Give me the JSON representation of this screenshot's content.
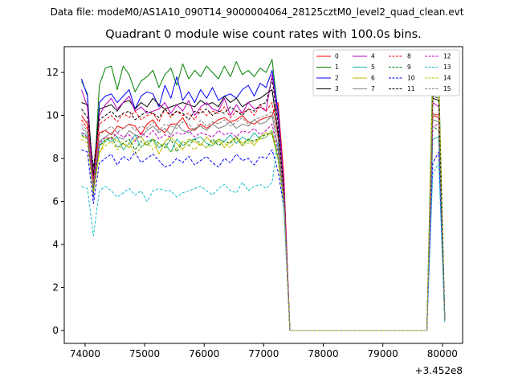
{
  "suptitle": "Data file: modeM0/AS1A10_090T14_9000004064_28125cztM0_level2_quad_clean.evt",
  "title": "Quadrant 0 module wise count rates with 100.0s bins.",
  "chart_data": {
    "type": "line",
    "title": "Quadrant 0 module wise count rates with 100.0s bins.",
    "xlabel": "",
    "ylabel": "",
    "x_offset_label": "+3.452e8",
    "xlim": [
      73650,
      80340
    ],
    "ylim": [
      -0.6,
      13.2
    ],
    "xticks": [
      74000,
      75000,
      76000,
      77000,
      78000,
      79000,
      80000
    ],
    "yticks": [
      0,
      2,
      4,
      6,
      8,
      10,
      12
    ],
    "legend_position": "upper right",
    "legend_columns": 4,
    "x": [
      73940,
      74040,
      74140,
      74240,
      74340,
      74440,
      74540,
      74640,
      74740,
      74840,
      74940,
      75040,
      75140,
      75240,
      75340,
      75440,
      75540,
      75640,
      75740,
      75840,
      75940,
      76040,
      76140,
      76240,
      76340,
      76440,
      76540,
      76640,
      76740,
      76840,
      76940,
      77040,
      77140,
      77240,
      77340,
      77440,
      77540,
      77640,
      77740,
      77840,
      77940,
      78040,
      78140,
      78240,
      78340,
      78440,
      78540,
      78640,
      78740,
      78840,
      78940,
      79040,
      79140,
      79240,
      79340,
      79440,
      79540,
      79640,
      79740,
      79840,
      79940,
      80040
    ],
    "series": [
      {
        "name": "0",
        "color": "#ff0000",
        "dash": "solid",
        "values": [
          10.0,
          9.6,
          7.0,
          9.2,
          9.3,
          9.1,
          9.5,
          9.4,
          9.6,
          9.5,
          9.1,
          9.6,
          9.8,
          9.4,
          9.2,
          9.6,
          9.6,
          9.9,
          9.4,
          9.3,
          9.6,
          9.4,
          9.6,
          9.8,
          9.9,
          9.7,
          9.8,
          10.0,
          9.7,
          9.6,
          9.8,
          9.9,
          10.0,
          10.6,
          7.1,
          0.0,
          0,
          0,
          0,
          0,
          0,
          0,
          0,
          0,
          0,
          0,
          0,
          0,
          0,
          0,
          0,
          0,
          0,
          0,
          0,
          0,
          0,
          0,
          0,
          10.0,
          9.9,
          0.5
        ]
      },
      {
        "name": "1",
        "color": "#008000",
        "dash": "solid",
        "values": [
          11.6,
          11.0,
          6.4,
          11.4,
          12.2,
          12.3,
          11.2,
          12.3,
          11.9,
          11.1,
          11.6,
          11.8,
          12.1,
          11.3,
          11.9,
          12.2,
          11.4,
          12.4,
          11.7,
          12.1,
          11.8,
          12.3,
          12.0,
          11.7,
          12.3,
          11.8,
          12.5,
          11.9,
          12.1,
          11.8,
          12.2,
          12.0,
          12.6,
          10.1,
          6.5,
          0.0,
          0,
          0,
          0,
          0,
          0,
          0,
          0,
          0,
          0,
          0,
          0,
          0,
          0,
          0,
          0,
          0,
          0,
          0,
          0,
          0,
          0,
          0,
          0,
          12.3,
          11.8,
          0.6
        ]
      },
      {
        "name": "2",
        "color": "#0000ff",
        "dash": "solid",
        "values": [
          11.7,
          10.9,
          6.2,
          10.6,
          10.9,
          11.0,
          10.6,
          10.9,
          11.2,
          10.3,
          10.9,
          11.1,
          11.0,
          10.4,
          11.4,
          10.8,
          11.8,
          10.7,
          11.1,
          10.6,
          11.2,
          10.8,
          11.3,
          10.7,
          10.9,
          11.0,
          10.8,
          11.2,
          11.4,
          10.9,
          11.5,
          11.3,
          12.1,
          10.2,
          6.7,
          0.0,
          0,
          0,
          0,
          0,
          0,
          0,
          0,
          0,
          0,
          0,
          0,
          0,
          0,
          0,
          0,
          0,
          0,
          0,
          0,
          0,
          0,
          0,
          0,
          11.0,
          11.0,
          0.6
        ]
      },
      {
        "name": "3",
        "color": "#000000",
        "dash": "solid",
        "values": [
          10.6,
          10.5,
          7.2,
          10.3,
          10.4,
          10.5,
          10.2,
          10.6,
          10.7,
          10.3,
          10.6,
          10.4,
          10.8,
          10.5,
          10.3,
          10.4,
          10.5,
          10.6,
          10.5,
          10.4,
          10.7,
          10.5,
          10.6,
          10.4,
          10.9,
          10.6,
          10.8,
          10.4,
          10.6,
          10.7,
          10.8,
          11.0,
          11.2,
          9.2,
          6.0,
          0.0,
          0,
          0,
          0,
          0,
          0,
          0,
          0,
          0,
          0,
          0,
          0,
          0,
          0,
          0,
          0,
          0,
          0,
          0,
          0,
          0,
          0,
          0,
          0,
          10.8,
          10.7,
          0.5
        ]
      },
      {
        "name": "4",
        "color": "#bf00bf",
        "dash": "solid",
        "values": [
          11.2,
          10.4,
          6.8,
          10.0,
          10.5,
          10.8,
          10.3,
          10.6,
          10.9,
          10.2,
          10.4,
          10.1,
          10.2,
          10.3,
          10.6,
          10.1,
          10.5,
          10.2,
          10.7,
          10.0,
          10.4,
          10.6,
          10.3,
          10.2,
          10.8,
          10.0,
          10.5,
          10.1,
          10.6,
          10.3,
          10.4,
          10.2,
          11.9,
          9.8,
          6.8,
          0.0,
          0,
          0,
          0,
          0,
          0,
          0,
          0,
          0,
          0,
          0,
          0,
          0,
          0,
          0,
          0,
          0,
          0,
          0,
          0,
          0,
          0,
          0,
          0,
          10.6,
          10.4,
          0.5
        ]
      },
      {
        "name": "5",
        "color": "#1fb5a5",
        "dash": "solid",
        "values": [
          9.2,
          9.1,
          6.6,
          8.6,
          8.9,
          8.8,
          9.0,
          8.4,
          8.7,
          9.1,
          8.5,
          8.8,
          8.9,
          8.5,
          8.7,
          8.3,
          8.9,
          8.6,
          8.8,
          8.9,
          9.0,
          8.7,
          8.6,
          8.9,
          8.8,
          9.1,
          8.7,
          9.0,
          8.8,
          9.2,
          8.9,
          9.0,
          9.3,
          8.0,
          5.9,
          0.0,
          0,
          0,
          0,
          0,
          0,
          0,
          0,
          0,
          0,
          0,
          0,
          0,
          0,
          0,
          0,
          0,
          0,
          0,
          0,
          0,
          0,
          0,
          0,
          8.9,
          9.0,
          0.4
        ]
      },
      {
        "name": "6",
        "color": "#bfbf00",
        "dash": "solid",
        "values": [
          9.0,
          9.0,
          6.5,
          8.2,
          8.9,
          9.0,
          8.8,
          8.7,
          8.5,
          8.9,
          9.0,
          8.6,
          8.9,
          8.2,
          8.8,
          9.0,
          8.7,
          8.4,
          8.9,
          8.8,
          8.6,
          9.0,
          8.7,
          8.9,
          8.5,
          8.8,
          9.0,
          8.7,
          8.9,
          8.6,
          9.0,
          9.2,
          9.1,
          8.0,
          5.9,
          0.0,
          0,
          0,
          0,
          0,
          0,
          0,
          0,
          0,
          0,
          0,
          0,
          0,
          0,
          0,
          0,
          0,
          0,
          0,
          0,
          0,
          0,
          0,
          0,
          11.5,
          11.2,
          0.5
        ]
      },
      {
        "name": "7",
        "color": "#808080",
        "dash": "solid",
        "values": [
          9.4,
          9.2,
          6.6,
          8.8,
          9.0,
          9.2,
          9.0,
          8.9,
          9.3,
          9.1,
          9.0,
          9.3,
          9.5,
          9.2,
          9.4,
          9.1,
          9.6,
          9.3,
          9.2,
          9.4,
          9.5,
          9.3,
          9.6,
          9.4,
          9.5,
          9.7,
          9.4,
          9.6,
          9.5,
          9.8,
          9.6,
          9.7,
          10.0,
          8.5,
          6.1,
          0.0,
          0,
          0,
          0,
          0,
          0,
          0,
          0,
          0,
          0,
          0,
          0,
          0,
          0,
          0,
          0,
          0,
          0,
          0,
          0,
          0,
          0,
          0,
          0,
          9.8,
          9.7,
          0.5
        ]
      },
      {
        "name": "8",
        "color": "#ff0000",
        "dash": "dashed",
        "values": [
          9.8,
          9.4,
          6.9,
          9.6,
          9.8,
          10.0,
          9.7,
          10.1,
          9.9,
          10.2,
          9.8,
          10.0,
          10.1,
          9.7,
          10.3,
          9.9,
          10.2,
          10.0,
          10.1,
          9.8,
          10.3,
          10.0,
          10.2,
          10.1,
          10.4,
          9.9,
          10.2,
          10.1,
          10.3,
          10.0,
          10.5,
          10.2,
          10.6,
          9.0,
          6.3,
          0.0,
          0,
          0,
          0,
          0,
          0,
          0,
          0,
          0,
          0,
          0,
          0,
          0,
          0,
          0,
          0,
          0,
          0,
          0,
          0,
          0,
          0,
          0,
          0,
          10.1,
          10.0,
          0.5
        ]
      },
      {
        "name": "9",
        "color": "#008000",
        "dash": "dashed",
        "values": [
          9.1,
          8.9,
          6.5,
          8.6,
          8.8,
          9.0,
          8.5,
          8.7,
          8.9,
          8.4,
          8.8,
          8.6,
          8.9,
          8.7,
          8.5,
          8.9,
          8.3,
          8.8,
          8.6,
          8.9,
          8.7,
          8.5,
          8.9,
          8.6,
          8.8,
          8.7,
          9.0,
          8.6,
          8.9,
          8.8,
          9.0,
          9.1,
          9.2,
          8.0,
          5.9,
          0.0,
          0,
          0,
          0,
          0,
          0,
          0,
          0,
          0,
          0,
          0,
          0,
          0,
          0,
          0,
          0,
          0,
          0,
          0,
          0,
          0,
          0,
          0,
          0,
          9.5,
          9.3,
          0.5
        ]
      },
      {
        "name": "10",
        "color": "#0000ff",
        "dash": "dashed",
        "values": [
          8.4,
          8.3,
          5.9,
          7.8,
          8.0,
          8.2,
          7.7,
          8.1,
          7.9,
          8.3,
          7.8,
          8.0,
          8.2,
          7.9,
          7.6,
          7.7,
          8.0,
          7.8,
          8.1,
          7.7,
          7.9,
          8.1,
          7.8,
          7.6,
          8.0,
          7.8,
          8.2,
          7.9,
          8.0,
          7.7,
          8.1,
          8.0,
          8.4,
          7.4,
          5.7,
          0.0,
          0,
          0,
          0,
          0,
          0,
          0,
          0,
          0,
          0,
          0,
          0,
          0,
          0,
          0,
          0,
          0,
          0,
          0,
          0,
          0,
          0,
          0,
          0,
          7.8,
          8.3,
          0.5
        ]
      },
      {
        "name": "11",
        "color": "#000000",
        "dash": "dashed",
        "values": [
          10.3,
          9.9,
          7.6,
          9.8,
          10.0,
          10.2,
          9.9,
          10.1,
          10.2,
          9.8,
          10.0,
          10.2,
          10.1,
          9.9,
          10.3,
          10.0,
          10.2,
          10.1,
          9.8,
          10.2,
          10.1,
          10.3,
          10.0,
          10.2,
          10.1,
          10.4,
          10.2,
          10.0,
          10.3,
          10.2,
          10.5,
          10.6,
          11.7,
          9.6,
          6.4,
          0.0,
          0,
          0,
          0,
          0,
          0,
          0,
          0,
          0,
          0,
          0,
          0,
          0,
          0,
          0,
          0,
          0,
          0,
          0,
          0,
          0,
          0,
          0,
          0,
          10.9,
          10.8,
          0.5
        ]
      },
      {
        "name": "12",
        "color": "#bf00bf",
        "dash": "dashed",
        "values": [
          9.2,
          9.0,
          6.7,
          8.7,
          9.0,
          8.9,
          9.2,
          9.0,
          9.1,
          8.8,
          9.2,
          9.0,
          9.3,
          8.9,
          9.1,
          9.0,
          9.2,
          9.1,
          9.3,
          9.0,
          9.2,
          9.1,
          9.0,
          9.3,
          9.1,
          9.2,
          9.0,
          9.3,
          9.2,
          9.4,
          9.1,
          9.3,
          9.6,
          8.3,
          6.0,
          0.0,
          0,
          0,
          0,
          0,
          0,
          0,
          0,
          0,
          0,
          0,
          0,
          0,
          0,
          0,
          0,
          0,
          0,
          0,
          0,
          0,
          0,
          0,
          0,
          9.5,
          9.6,
          0.5
        ]
      },
      {
        "name": "13",
        "color": "#17becf",
        "dash": "dashed",
        "values": [
          6.7,
          6.6,
          4.4,
          6.5,
          6.7,
          6.5,
          6.2,
          6.4,
          6.6,
          6.3,
          6.5,
          6.0,
          6.5,
          6.6,
          6.5,
          6.5,
          6.2,
          6.4,
          6.5,
          6.6,
          6.7,
          6.5,
          6.3,
          6.6,
          6.8,
          6.5,
          6.4,
          6.9,
          6.5,
          6.7,
          6.8,
          6.6,
          6.9,
          8.8,
          5.5,
          0.0,
          0,
          0,
          0,
          0,
          0,
          0,
          0,
          0,
          0,
          0,
          0,
          0,
          0,
          0,
          0,
          0,
          0,
          0,
          0,
          0,
          0,
          0,
          0,
          7.3,
          7.8,
          0.4
        ]
      },
      {
        "name": "14",
        "color": "#bfbf00",
        "dash": "dashed",
        "values": [
          8.9,
          8.7,
          6.3,
          8.3,
          8.6,
          8.8,
          8.4,
          8.6,
          8.7,
          8.2,
          8.5,
          8.8,
          8.4,
          8.7,
          8.6,
          8.3,
          8.5,
          8.8,
          8.6,
          8.4,
          8.7,
          8.5,
          8.6,
          8.8,
          8.7,
          8.5,
          8.9,
          8.6,
          8.7,
          8.8,
          8.9,
          9.0,
          9.3,
          8.1,
          5.9,
          0.0,
          0,
          0,
          0,
          0,
          0,
          0,
          0,
          0,
          0,
          0,
          0,
          0,
          0,
          0,
          0,
          0,
          0,
          0,
          0,
          0,
          0,
          0,
          0,
          11.6,
          11.4,
          0.5
        ]
      },
      {
        "name": "15",
        "color": "#808080",
        "dash": "dashed",
        "values": [
          9.6,
          9.3,
          6.8,
          9.1,
          9.3,
          9.5,
          9.2,
          9.4,
          9.6,
          9.3,
          9.5,
          9.4,
          9.7,
          9.3,
          9.6,
          9.5,
          9.4,
          9.7,
          9.6,
          9.3,
          9.8,
          9.5,
          9.7,
          9.6,
          9.8,
          9.5,
          9.7,
          9.9,
          9.6,
          9.8,
          9.9,
          10.0,
          10.2,
          8.9,
          6.2,
          0.0,
          0,
          0,
          0,
          0,
          0,
          0,
          0,
          0,
          0,
          0,
          0,
          0,
          0,
          0,
          0,
          0,
          0,
          0,
          0,
          0,
          0,
          0,
          0,
          10.1,
          9.9,
          0.5
        ]
      }
    ]
  }
}
